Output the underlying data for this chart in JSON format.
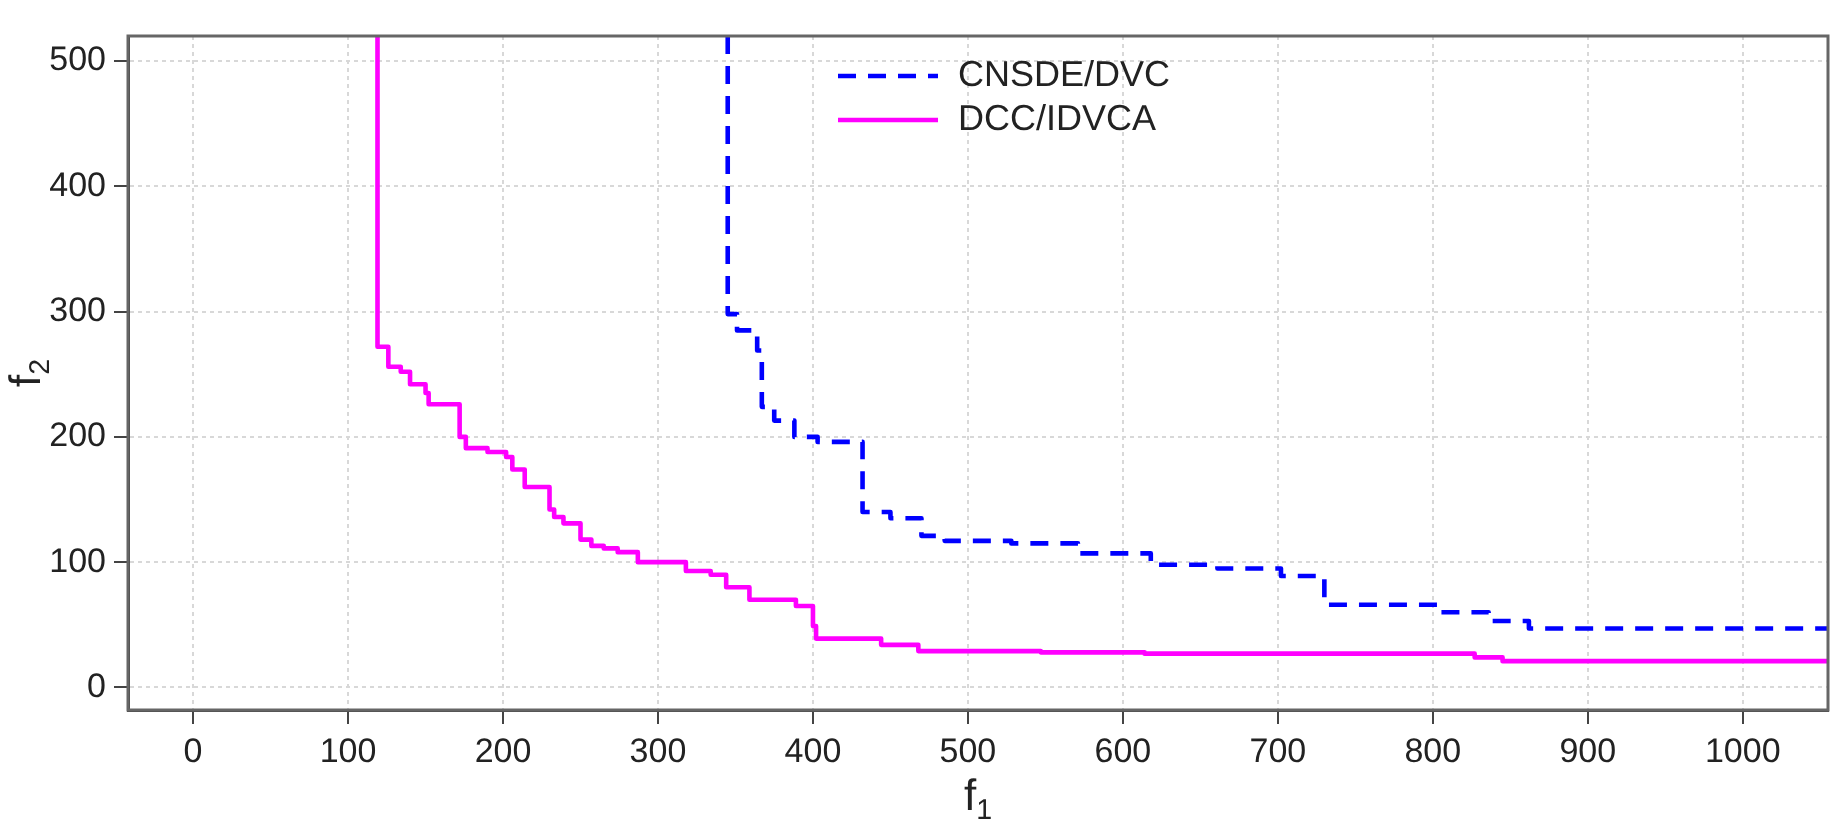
{
  "chart_data": {
    "type": "step",
    "xlabel": "f$_{1}$",
    "ylabel": "f$_{2}$",
    "series": [
      {
        "name": "CNSDE/DVC",
        "color": "#0000ff",
        "line_style": "dashed",
        "x": [
          345,
          345,
          351,
          364,
          367,
          375,
          388,
          403,
          432,
          450,
          470,
          485,
          528,
          571,
          618,
          661,
          702,
          730,
          804,
          836,
          862,
          1055
        ],
        "values": [
          520,
          298,
          285,
          269,
          224,
          213,
          200,
          196,
          140,
          135,
          121,
          117,
          115,
          107,
          98,
          95,
          89,
          66,
          60,
          53,
          47,
          47
        ]
      },
      {
        "name": "DCC/IDVCA",
        "color": "#ff00ff",
        "line_style": "solid",
        "x": [
          119,
          119,
          126,
          134,
          140,
          150,
          152,
          172,
          176,
          190,
          202,
          206,
          214,
          230,
          233,
          239,
          250,
          257,
          265,
          274,
          287,
          318,
          334,
          344,
          359,
          389,
          400,
          402,
          444,
          468,
          547,
          614,
          827,
          845,
          1055
        ],
        "values": [
          520,
          272,
          256,
          252,
          242,
          235,
          226,
          200,
          191,
          188,
          184,
          174,
          160,
          142,
          136,
          131,
          118,
          113,
          111,
          108,
          100,
          93,
          90,
          80,
          70,
          65,
          49,
          39,
          34,
          29,
          28,
          27,
          24,
          21,
          21
        ]
      }
    ],
    "xlim": [
      -42,
      1055
    ],
    "ylim": [
      -18,
      520
    ],
    "xticks": [
      0,
      100,
      200,
      300,
      400,
      500,
      600,
      700,
      800,
      900,
      1000
    ],
    "yticks": [
      0,
      100,
      200,
      300,
      400,
      500
    ],
    "grid": true,
    "legend": "top",
    "marker": "none"
  }
}
